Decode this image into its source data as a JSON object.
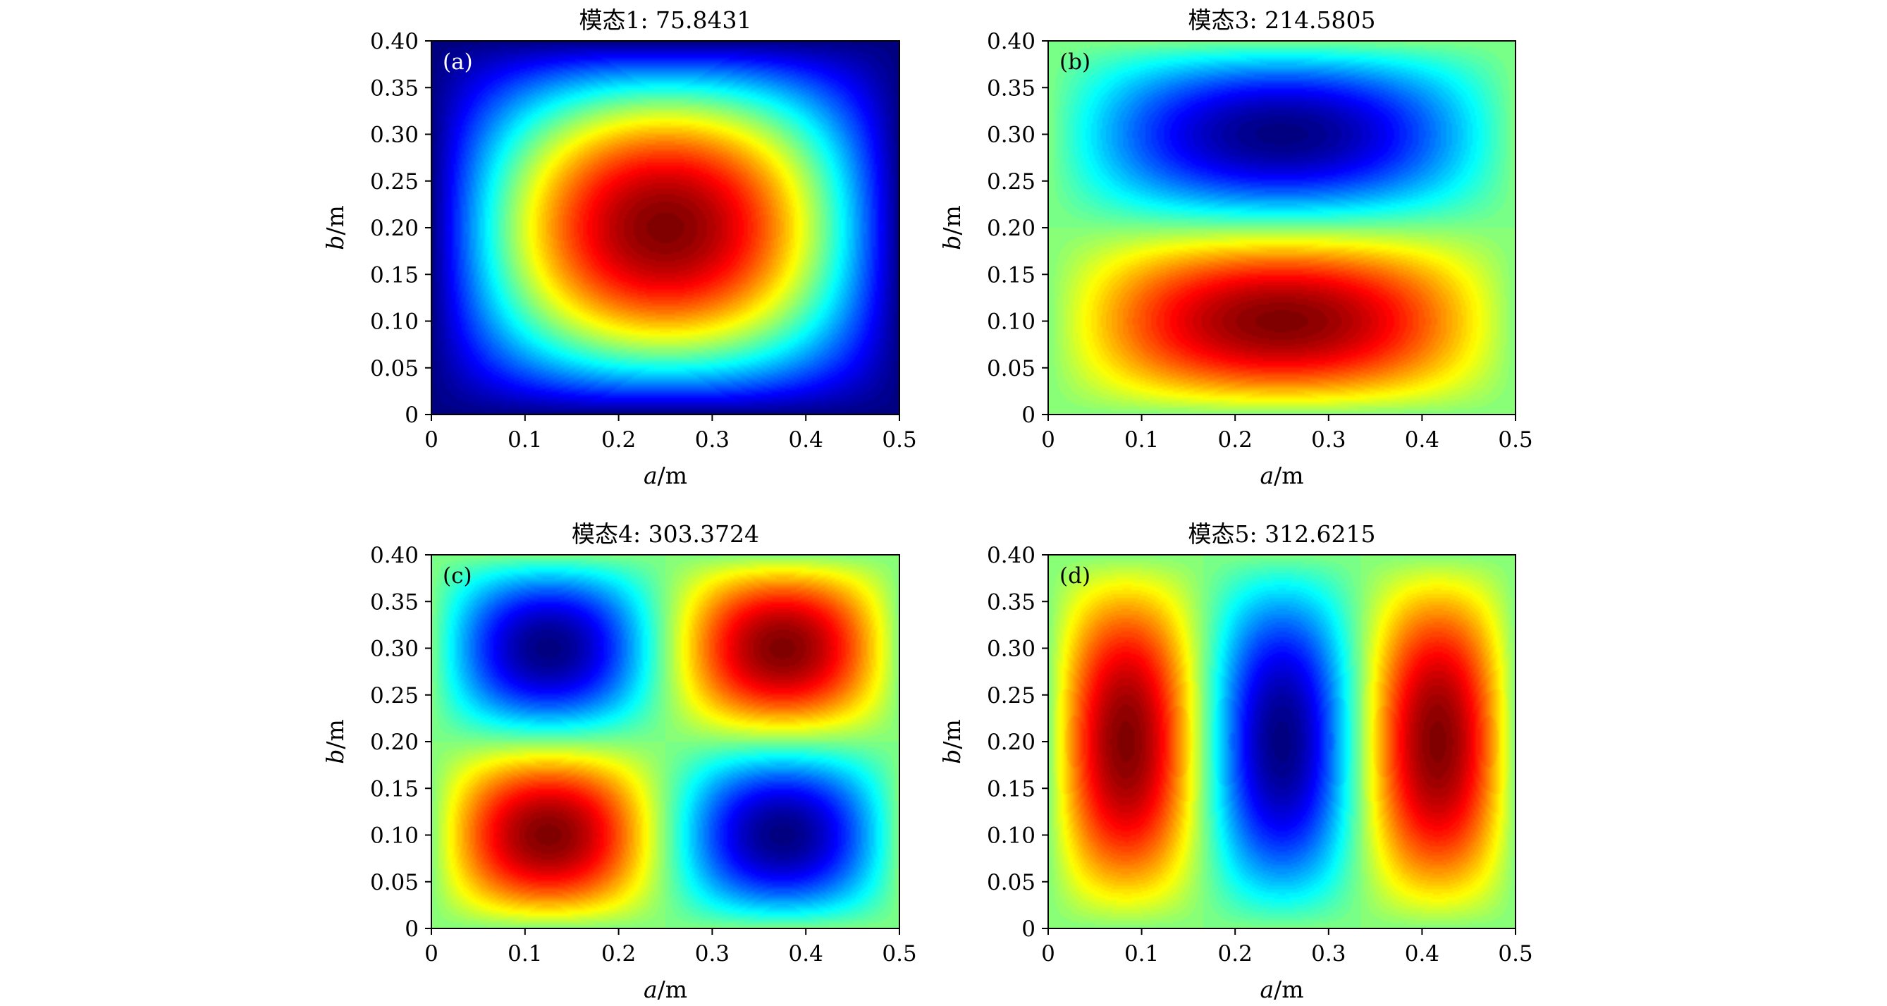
{
  "chart_data": [
    {
      "type": "heatmap",
      "panel_label": "(a)",
      "title": "模态1: 75.8431",
      "xlabel_var": "a",
      "xlabel_unit": "/m",
      "ylabel_var": "b",
      "ylabel_unit": "/m",
      "xlim": [
        0,
        0.5
      ],
      "ylim": [
        0,
        0.4
      ],
      "x_ticks": [
        "0",
        "0.1",
        "0.2",
        "0.3",
        "0.4",
        "0.5"
      ],
      "y_ticks": [
        "0",
        "0.05",
        "0.10",
        "0.15",
        "0.20",
        "0.25",
        "0.30",
        "0.35",
        "0.40"
      ],
      "mode_shape": {
        "m": 1,
        "n": 1
      },
      "value_range": [
        0,
        1
      ],
      "colormap": "jet",
      "extrema": [
        {
          "x": 0.25,
          "y": 0.2,
          "sign": "max"
        }
      ]
    },
    {
      "type": "heatmap",
      "panel_label": "(b)",
      "title": "模态3: 214.5805",
      "xlabel_var": "a",
      "xlabel_unit": "/m",
      "ylabel_var": "b",
      "ylabel_unit": "/m",
      "xlim": [
        0,
        0.5
      ],
      "ylim": [
        0,
        0.4
      ],
      "x_ticks": [
        "0",
        "0.1",
        "0.2",
        "0.3",
        "0.4",
        "0.5"
      ],
      "y_ticks": [
        "0",
        "0.05",
        "0.10",
        "0.15",
        "0.20",
        "0.25",
        "0.30",
        "0.35",
        "0.40"
      ],
      "mode_shape": {
        "m": 1,
        "n": 2
      },
      "value_range": [
        -1,
        1
      ],
      "colormap": "jet",
      "extrema": [
        {
          "x": 0.25,
          "y": 0.1,
          "sign": "max"
        },
        {
          "x": 0.25,
          "y": 0.3,
          "sign": "min"
        }
      ]
    },
    {
      "type": "heatmap",
      "panel_label": "(c)",
      "title": "模态4: 303.3724",
      "xlabel_var": "a",
      "xlabel_unit": "/m",
      "ylabel_var": "b",
      "ylabel_unit": "/m",
      "xlim": [
        0,
        0.5
      ],
      "ylim": [
        0,
        0.4
      ],
      "x_ticks": [
        "0",
        "0.1",
        "0.2",
        "0.3",
        "0.4",
        "0.5"
      ],
      "y_ticks": [
        "0",
        "0.05",
        "0.10",
        "0.15",
        "0.20",
        "0.25",
        "0.30",
        "0.35",
        "0.40"
      ],
      "mode_shape": {
        "m": 2,
        "n": 2
      },
      "value_range": [
        -1,
        1
      ],
      "colormap": "jet",
      "extrema": [
        {
          "x": 0.125,
          "y": 0.1,
          "sign": "max"
        },
        {
          "x": 0.375,
          "y": 0.3,
          "sign": "max"
        },
        {
          "x": 0.125,
          "y": 0.3,
          "sign": "min"
        },
        {
          "x": 0.375,
          "y": 0.1,
          "sign": "min"
        }
      ]
    },
    {
      "type": "heatmap",
      "panel_label": "(d)",
      "title": "模态5: 312.6215",
      "xlabel_var": "a",
      "xlabel_unit": "/m",
      "ylabel_var": "b",
      "ylabel_unit": "/m",
      "xlim": [
        0,
        0.5
      ],
      "ylim": [
        0,
        0.4
      ],
      "x_ticks": [
        "0",
        "0.1",
        "0.2",
        "0.3",
        "0.4",
        "0.5"
      ],
      "y_ticks": [
        "0",
        "0.05",
        "0.10",
        "0.15",
        "0.20",
        "0.25",
        "0.30",
        "0.35",
        "0.40"
      ],
      "mode_shape": {
        "m": 3,
        "n": 1
      },
      "value_range": [
        -1,
        1
      ],
      "colormap": "jet",
      "extrema": [
        {
          "x": 0.083,
          "y": 0.2,
          "sign": "max"
        },
        {
          "x": 0.25,
          "y": 0.2,
          "sign": "min"
        },
        {
          "x": 0.417,
          "y": 0.2,
          "sign": "max"
        }
      ]
    }
  ]
}
